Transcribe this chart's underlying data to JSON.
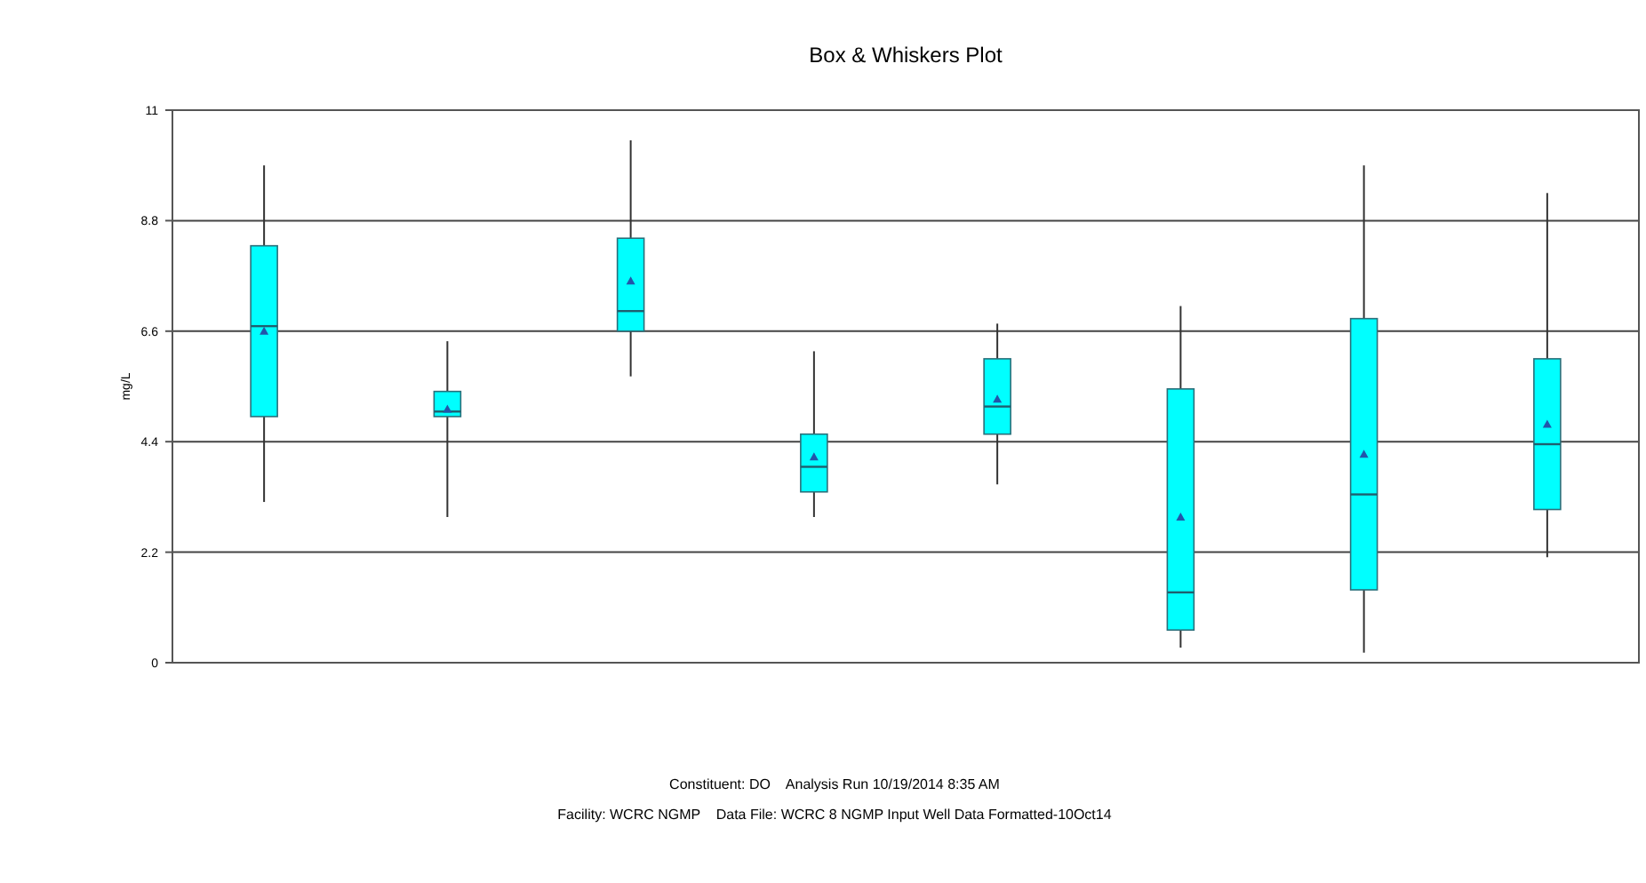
{
  "chart_data": {
    "type": "box",
    "title": "Box & Whiskers Plot",
    "ylabel": "mg/L",
    "categories": [
      null,
      null,
      null,
      null,
      null,
      null,
      null,
      null
    ],
    "color": "#00ffff",
    "boxes": [
      {
        "low": 3.2,
        "q1": 4.9,
        "median": 6.7,
        "q3": 8.3,
        "high": 9.9,
        "mean": 6.6
      },
      {
        "low": 2.9,
        "q1": 4.9,
        "median": 5.0,
        "q3": 5.4,
        "high": 6.4,
        "mean": 5.05
      },
      {
        "low": 5.7,
        "q1": 6.6,
        "median": 7.0,
        "q3": 8.45,
        "high": 10.4,
        "mean": 7.6
      },
      {
        "low": 2.9,
        "q1": 3.4,
        "median": 3.9,
        "q3": 4.55,
        "high": 6.2,
        "mean": 4.1
      },
      {
        "low": 3.55,
        "q1": 4.55,
        "median": 5.1,
        "q3": 6.05,
        "high": 6.75,
        "mean": 5.25
      },
      {
        "low": 0.3,
        "q1": 0.65,
        "median": 1.4,
        "q3": 5.45,
        "high": 7.1,
        "mean": 2.9
      },
      {
        "low": 0.2,
        "q1": 1.45,
        "median": 3.35,
        "q3": 6.85,
        "high": 9.9,
        "mean": 4.15
      },
      {
        "low": 2.1,
        "q1": 3.05,
        "median": 4.35,
        "q3": 6.05,
        "high": 9.35,
        "mean": 4.75
      }
    ],
    "ylim": [
      0,
      11
    ],
    "yticks": [
      0,
      2.2,
      4.4,
      6.6,
      8.8,
      11
    ],
    "grid": "y",
    "annotations": [
      "Constituent: DO    Analysis Run 10/19/2014 8:35 AM",
      "Facility: WCRC NGMP    Data File: WCRC 8 NGMP Input Well Data Formatted-10Oct14"
    ]
  }
}
